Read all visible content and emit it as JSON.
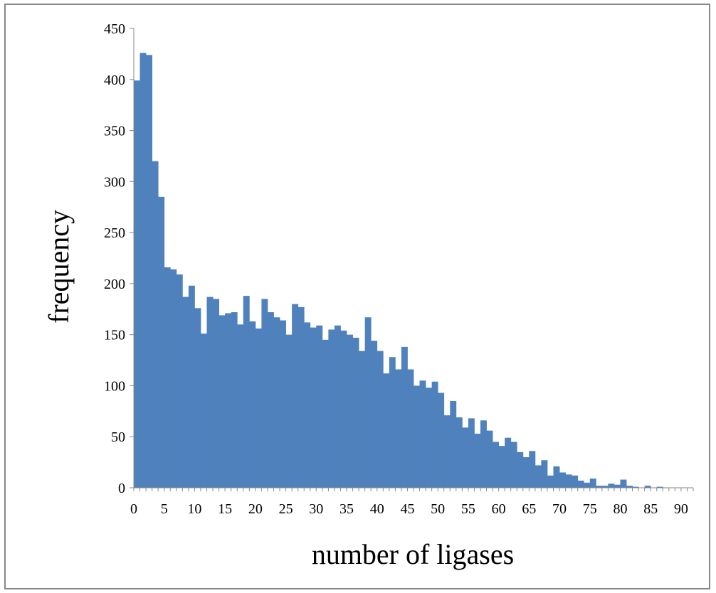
{
  "chart_data": {
    "type": "bar",
    "title": "",
    "xlabel": "number of ligases",
    "ylabel": "frequency",
    "xlim": [
      0,
      92
    ],
    "ylim": [
      0,
      450
    ],
    "x_ticks": [
      0,
      5,
      10,
      15,
      20,
      25,
      30,
      35,
      40,
      45,
      50,
      55,
      60,
      65,
      70,
      75,
      80,
      85,
      90
    ],
    "y_ticks": [
      0,
      50,
      100,
      150,
      200,
      250,
      300,
      350,
      400,
      450
    ],
    "grid": false,
    "legend": "none",
    "bar_color": "#4f81bd",
    "categories": [
      1,
      2,
      3,
      4,
      5,
      6,
      7,
      8,
      9,
      10,
      11,
      12,
      13,
      14,
      15,
      16,
      17,
      18,
      19,
      20,
      21,
      22,
      23,
      24,
      25,
      26,
      27,
      28,
      29,
      30,
      31,
      32,
      33,
      34,
      35,
      36,
      37,
      38,
      39,
      40,
      41,
      42,
      43,
      44,
      45,
      46,
      47,
      48,
      49,
      50,
      51,
      52,
      53,
      54,
      55,
      56,
      57,
      58,
      59,
      60,
      61,
      62,
      63,
      64,
      65,
      66,
      67,
      68,
      69,
      70,
      71,
      72,
      73,
      74,
      75,
      76,
      77,
      78,
      79,
      80,
      81,
      82,
      83,
      84,
      85,
      86,
      87,
      88,
      89,
      90,
      91
    ],
    "values": [
      399,
      426,
      424,
      320,
      285,
      216,
      214,
      209,
      187,
      198,
      176,
      151,
      187,
      185,
      169,
      171,
      172,
      160,
      188,
      163,
      156,
      185,
      172,
      167,
      164,
      150,
      180,
      177,
      162,
      157,
      159,
      145,
      155,
      159,
      154,
      150,
      147,
      134,
      167,
      144,
      134,
      112,
      128,
      116,
      138,
      116,
      100,
      105,
      98,
      104,
      93,
      71,
      85,
      69,
      59,
      68,
      53,
      66,
      56,
      45,
      41,
      49,
      45,
      35,
      30,
      36,
      22,
      27,
      12,
      21,
      15,
      13,
      12,
      7,
      5,
      9,
      2,
      2,
      4,
      3,
      8,
      2,
      1,
      0,
      2,
      0,
      1,
      0,
      0,
      0,
      0
    ]
  }
}
